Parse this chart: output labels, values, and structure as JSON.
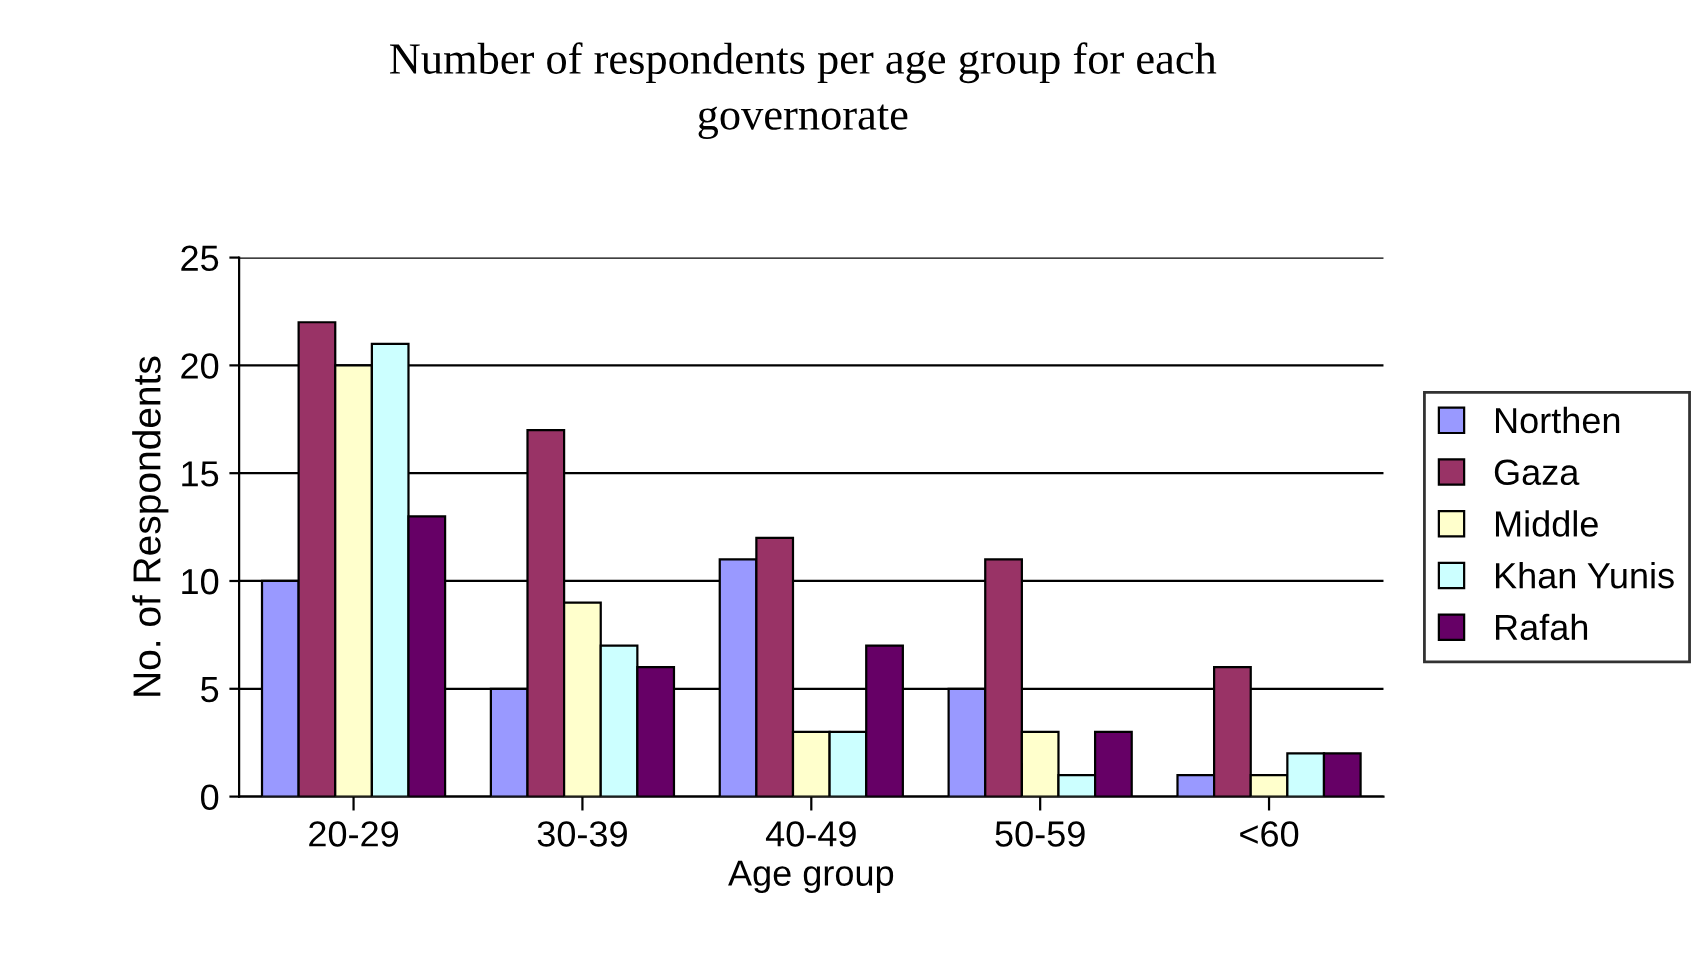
{
  "chart_data": {
    "type": "bar",
    "title": "Number of respondents per age group for each\ngovernorate",
    "xlabel": "Age group",
    "ylabel": "No. of Respondents",
    "categories": [
      "20-29",
      "30-39",
      "40-49",
      "50-59",
      "<60"
    ],
    "series": [
      {
        "name": "Northen",
        "color": "#9999ff",
        "values": [
          10,
          5,
          11,
          5,
          1
        ]
      },
      {
        "name": "Gaza",
        "color": "#993366",
        "values": [
          22,
          17,
          12,
          11,
          6
        ]
      },
      {
        "name": "Middle",
        "color": "#ffffcc",
        "values": [
          20,
          9,
          3,
          3,
          1
        ]
      },
      {
        "name": "Khan Yunis",
        "color": "#ccffff",
        "values": [
          21,
          7,
          3,
          1,
          2
        ]
      },
      {
        "name": "Rafah",
        "color": "#660066",
        "values": [
          13,
          6,
          7,
          3,
          2
        ]
      }
    ],
    "ylim": [
      0,
      25
    ],
    "yticks": [
      0,
      5,
      10,
      15,
      20,
      25
    ],
    "grid": "y",
    "legend": "right"
  }
}
